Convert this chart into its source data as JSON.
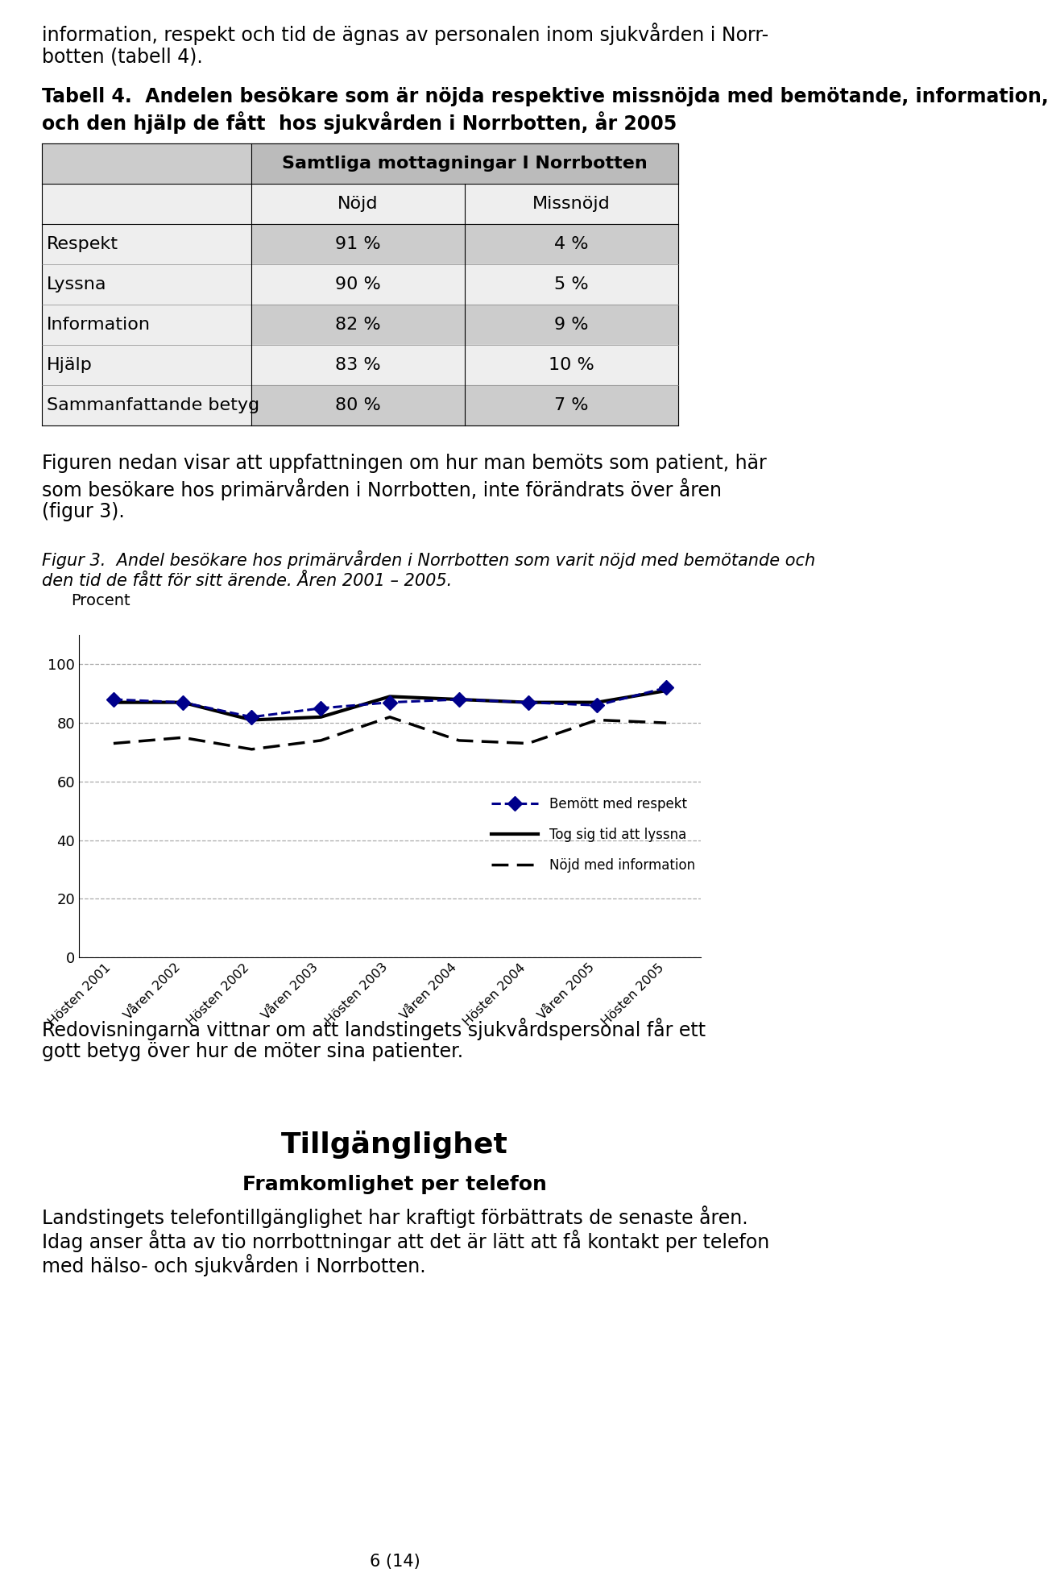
{
  "page_text_top_line1": "information, respekt och tid de ägnas av personalen inom sjukvården i Norr-",
  "page_text_top_line2": "botten (tabell 4).",
  "tabell_title_line1": "Tabell 4.  Andelen besökare som är nöjda respektive missnöjda med bemötande, information,",
  "tabell_title_line2": "och den hjälp de fått  hos sjukvården i Norrbotten, år 2005",
  "table_header": "Samtliga mottagningar I Norrbotten",
  "col_nojd": "Nöjd",
  "col_missnojd": "Missnöjd",
  "table_rows": [
    [
      "Respekt",
      "91 %",
      "4 %"
    ],
    [
      "Lyssna",
      "90 %",
      "5 %"
    ],
    [
      "Information",
      "82 %",
      "9 %"
    ],
    [
      "Hjälp",
      "83 %",
      "10 %"
    ],
    [
      "Sammanfattande betyg",
      "80 %",
      "7 %"
    ]
  ],
  "figur_text_line1": "Figuren nedan visar att uppfattningen om hur man bemöts som patient, här",
  "figur_text_line2": "som besökare hos primärvården i Norrbotten, inte förändrats över åren",
  "figur_text_line3": "(figur 3).",
  "figur_caption_line1": "Figur 3.  Andel besökare hos primärvården i Norrbotten som varit nöjd med bemötande och",
  "figur_caption_line2": "den tid de fått för sitt ärende. Åren 2001 – 2005.",
  "ylabel": "Procent",
  "ylim": [
    0,
    110
  ],
  "yticks": [
    0,
    20,
    40,
    60,
    80,
    100
  ],
  "xticklabels": [
    "Hösten 2001",
    "Våren 2002",
    "Hösten 2002",
    "Våren 2003",
    "Hösten 2003",
    "Våren 2004",
    "Hösten 2004",
    "Våren 2005",
    "Hösten 2005"
  ],
  "line1_label": "Bemött med respekt",
  "line1_values": [
    88,
    87,
    82,
    85,
    87,
    88,
    87,
    86,
    92
  ],
  "line1_color": "#00008B",
  "line2_label": "Tog sig tid att lyssna",
  "line2_values": [
    87,
    87,
    81,
    82,
    89,
    88,
    87,
    87,
    91
  ],
  "line2_color": "#000000",
  "line3_label": "Nöjd med information",
  "line3_values": [
    73,
    75,
    71,
    74,
    82,
    74,
    73,
    81,
    80
  ],
  "line3_color": "#000000",
  "bottom_text_line1": "Redovisningarna vittnar om att landstingets sjukvårdspersonal får ett",
  "bottom_text_line2": "gott betyg över hur de möter sina patienter.",
  "section_title": "Tillgänglighet",
  "section_subtitle": "Framkomlighet per telefon",
  "section_text_line1": "Landstingets telefontillgänglighet har kraftigt förbättrats de senaste åren.",
  "section_text_line2": "Idag anser åtta av tio norrbottningar att det är lätt att få kontakt per telefon",
  "section_text_line3": "med hälso- och sjukvården i Norrbotten.",
  "page_number": "6 (14)",
  "bg_color": "#ffffff",
  "table_header_bg": "#bbbbbb",
  "table_row_bg_dark": "#cccccc",
  "table_row_bg_light": "#eeeeee",
  "body_fontsize": 17,
  "tabell_title_fontsize": 17,
  "table_fontsize": 16,
  "figur_caption_fontsize": 15,
  "section_title_fontsize": 26,
  "section_subtitle_fontsize": 18,
  "page_num_fontsize": 15
}
